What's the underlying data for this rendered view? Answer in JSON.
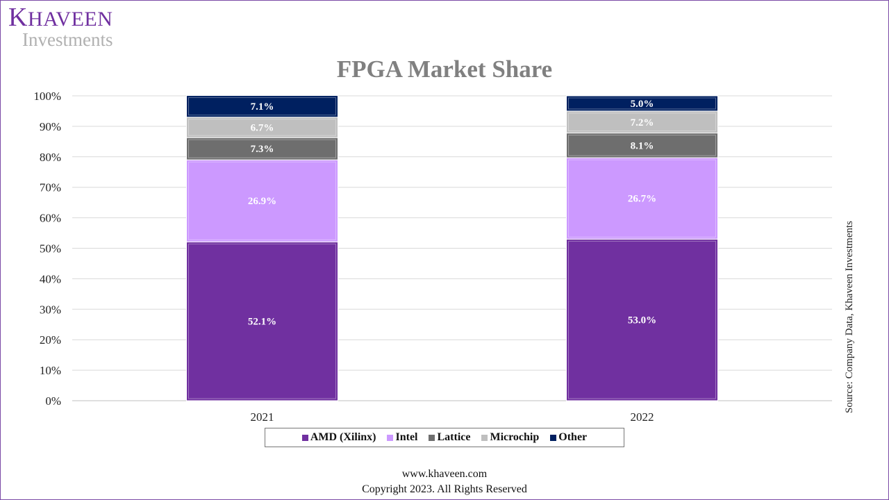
{
  "logo": {
    "brand_first": "K",
    "brand_rest": "HAVEEN",
    "sub": "Investments"
  },
  "source_note": "Source: Company Data, Khaveen Investments",
  "footer": {
    "website": "www.khaveen.com",
    "copyright": "Copyright 2023.  All Rights Reserved"
  },
  "chart_data": {
    "type": "bar",
    "stacked": true,
    "title": "FPGA Market Share",
    "xlabel": "",
    "ylabel": "",
    "categories": [
      "2021",
      "2022"
    ],
    "ylim": [
      0,
      100
    ],
    "yticks": [
      "0%",
      "10%",
      "20%",
      "30%",
      "40%",
      "50%",
      "60%",
      "70%",
      "80%",
      "90%",
      "100%"
    ],
    "grid": true,
    "legend_position": "bottom",
    "series": [
      {
        "name": "AMD (Xilinx)",
        "values": [
          52.1,
          53.0
        ],
        "labels": [
          "52.1%",
          "53.0%"
        ],
        "color": "#7030a0"
      },
      {
        "name": "Intel",
        "values": [
          26.9,
          26.7
        ],
        "labels": [
          "26.9%",
          "26.7%"
        ],
        "color": "#cc99ff"
      },
      {
        "name": "Lattice",
        "values": [
          7.3,
          8.1
        ],
        "labels": [
          "7.3%",
          "8.1%"
        ],
        "color": "#6e6e6e"
      },
      {
        "name": "Microchip",
        "values": [
          6.7,
          7.2
        ],
        "labels": [
          "6.7%",
          "7.2%"
        ],
        "color": "#bfbfbf"
      },
      {
        "name": "Other",
        "values": [
          7.1,
          5.0
        ],
        "labels": [
          "7.1%",
          "5.0%"
        ],
        "color": "#002060"
      }
    ]
  }
}
